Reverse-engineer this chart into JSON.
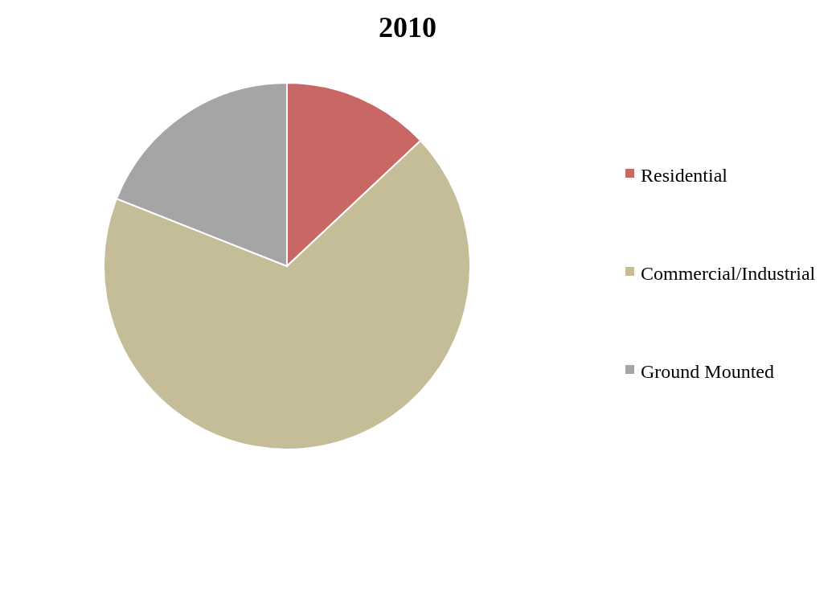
{
  "chart_data": {
    "type": "pie",
    "title": "2010",
    "categories": [
      "Residential",
      "Commercial/Industrial",
      "Ground Mounted"
    ],
    "values": [
      13,
      68,
      19
    ],
    "colors": [
      "#c96764",
      "#c4bd97",
      "#a5a5a5"
    ],
    "legend": "right"
  }
}
